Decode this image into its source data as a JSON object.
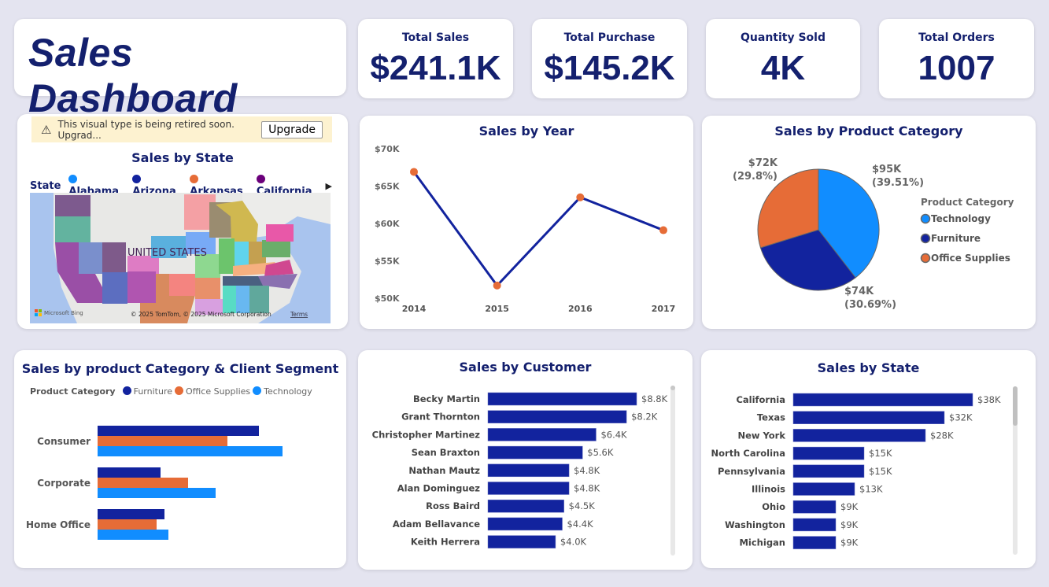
{
  "header": {
    "title": "Sales Dashboard"
  },
  "kpis": [
    {
      "label": "Total Sales",
      "value": "$241.1K"
    },
    {
      "label": "Total Purchase",
      "value": "$145.2K"
    },
    {
      "label": "Quantity Sold",
      "value": "4K"
    },
    {
      "label": "Total Orders",
      "value": "1007"
    }
  ],
  "map": {
    "banner_text": "This visual type is being retired soon. Upgrad...",
    "upgrade_label": "Upgrade",
    "title": "Sales by State",
    "legend_title": "State",
    "legend": [
      {
        "name": "Alabama",
        "color": "#118dff"
      },
      {
        "name": "Arizona",
        "color": "#12239e"
      },
      {
        "name": "Arkansas",
        "color": "#e66c37"
      },
      {
        "name": "California",
        "color": "#6b007b"
      }
    ],
    "country_label": "UNITED STATES",
    "bing_label": "Microsoft Bing",
    "copyright": "© 2025 TomTom, © 2025 Microsoft Corporation",
    "terms": "Terms"
  },
  "colors": {
    "technology": "#118dff",
    "furniture": "#12239e",
    "office_supplies": "#e66c37",
    "bar": "#12239e"
  },
  "chart_data": [
    {
      "type": "line",
      "title": "Sales by Year",
      "x": [
        "2014",
        "2015",
        "2016",
        "2017"
      ],
      "values": [
        66900,
        51700,
        63500,
        59100
      ],
      "ylim": [
        50000,
        70000
      ],
      "yticks": [
        "$50K",
        "$55K",
        "$60K",
        "$65K",
        "$70K"
      ]
    },
    {
      "type": "pie",
      "title": "Sales by Product Category",
      "legend_title": "Product Category",
      "slices": [
        {
          "name": "Technology",
          "value": 95,
          "label": "$95K",
          "pct": "(39.51%)",
          "percent": 39.51
        },
        {
          "name": "Furniture",
          "value": 74,
          "label": "$74K",
          "pct": "(30.69%)",
          "percent": 30.69
        },
        {
          "name": "Office Supplies",
          "value": 72,
          "label": "$72K",
          "pct": "(29.8%)",
          "percent": 29.8
        }
      ]
    },
    {
      "type": "bar",
      "title": "Sales by product Category & Client Segment",
      "legend_title": "Product Category",
      "categories": [
        "Consumer",
        "Corporate",
        "Home Office"
      ],
      "series": [
        {
          "name": "Furniture",
          "values": [
            41,
            16,
            17
          ]
        },
        {
          "name": "Office Supplies",
          "values": [
            33,
            23,
            15
          ]
        },
        {
          "name": "Technology",
          "values": [
            47,
            30,
            18
          ]
        }
      ]
    },
    {
      "type": "bar",
      "title": "Sales by Customer",
      "categories": [
        "Becky Martin",
        "Grant Thornton",
        "Christopher Martinez",
        "Sean Braxton",
        "Nathan Mautz",
        "Alan Dominguez",
        "Ross Baird",
        "Adam Bellavance",
        "Keith Herrera"
      ],
      "values": [
        8.8,
        8.2,
        6.4,
        5.6,
        4.8,
        4.8,
        4.5,
        4.4,
        4.0
      ],
      "labels": [
        "$8.8K",
        "$8.2K",
        "$6.4K",
        "$5.6K",
        "$4.8K",
        "$4.8K",
        "$4.5K",
        "$4.4K",
        "$4.0K"
      ]
    },
    {
      "type": "bar",
      "title": "Sales by State",
      "categories": [
        "California",
        "Texas",
        "New York",
        "North Carolina",
        "Pennsylvania",
        "Illinois",
        "Ohio",
        "Washington",
        "Michigan"
      ],
      "values": [
        38,
        32,
        28,
        15,
        15,
        13,
        9,
        9,
        9
      ],
      "labels": [
        "$38K",
        "$32K",
        "$28K",
        "$15K",
        "$15K",
        "$13K",
        "$9K",
        "$9K",
        "$9K"
      ]
    }
  ]
}
